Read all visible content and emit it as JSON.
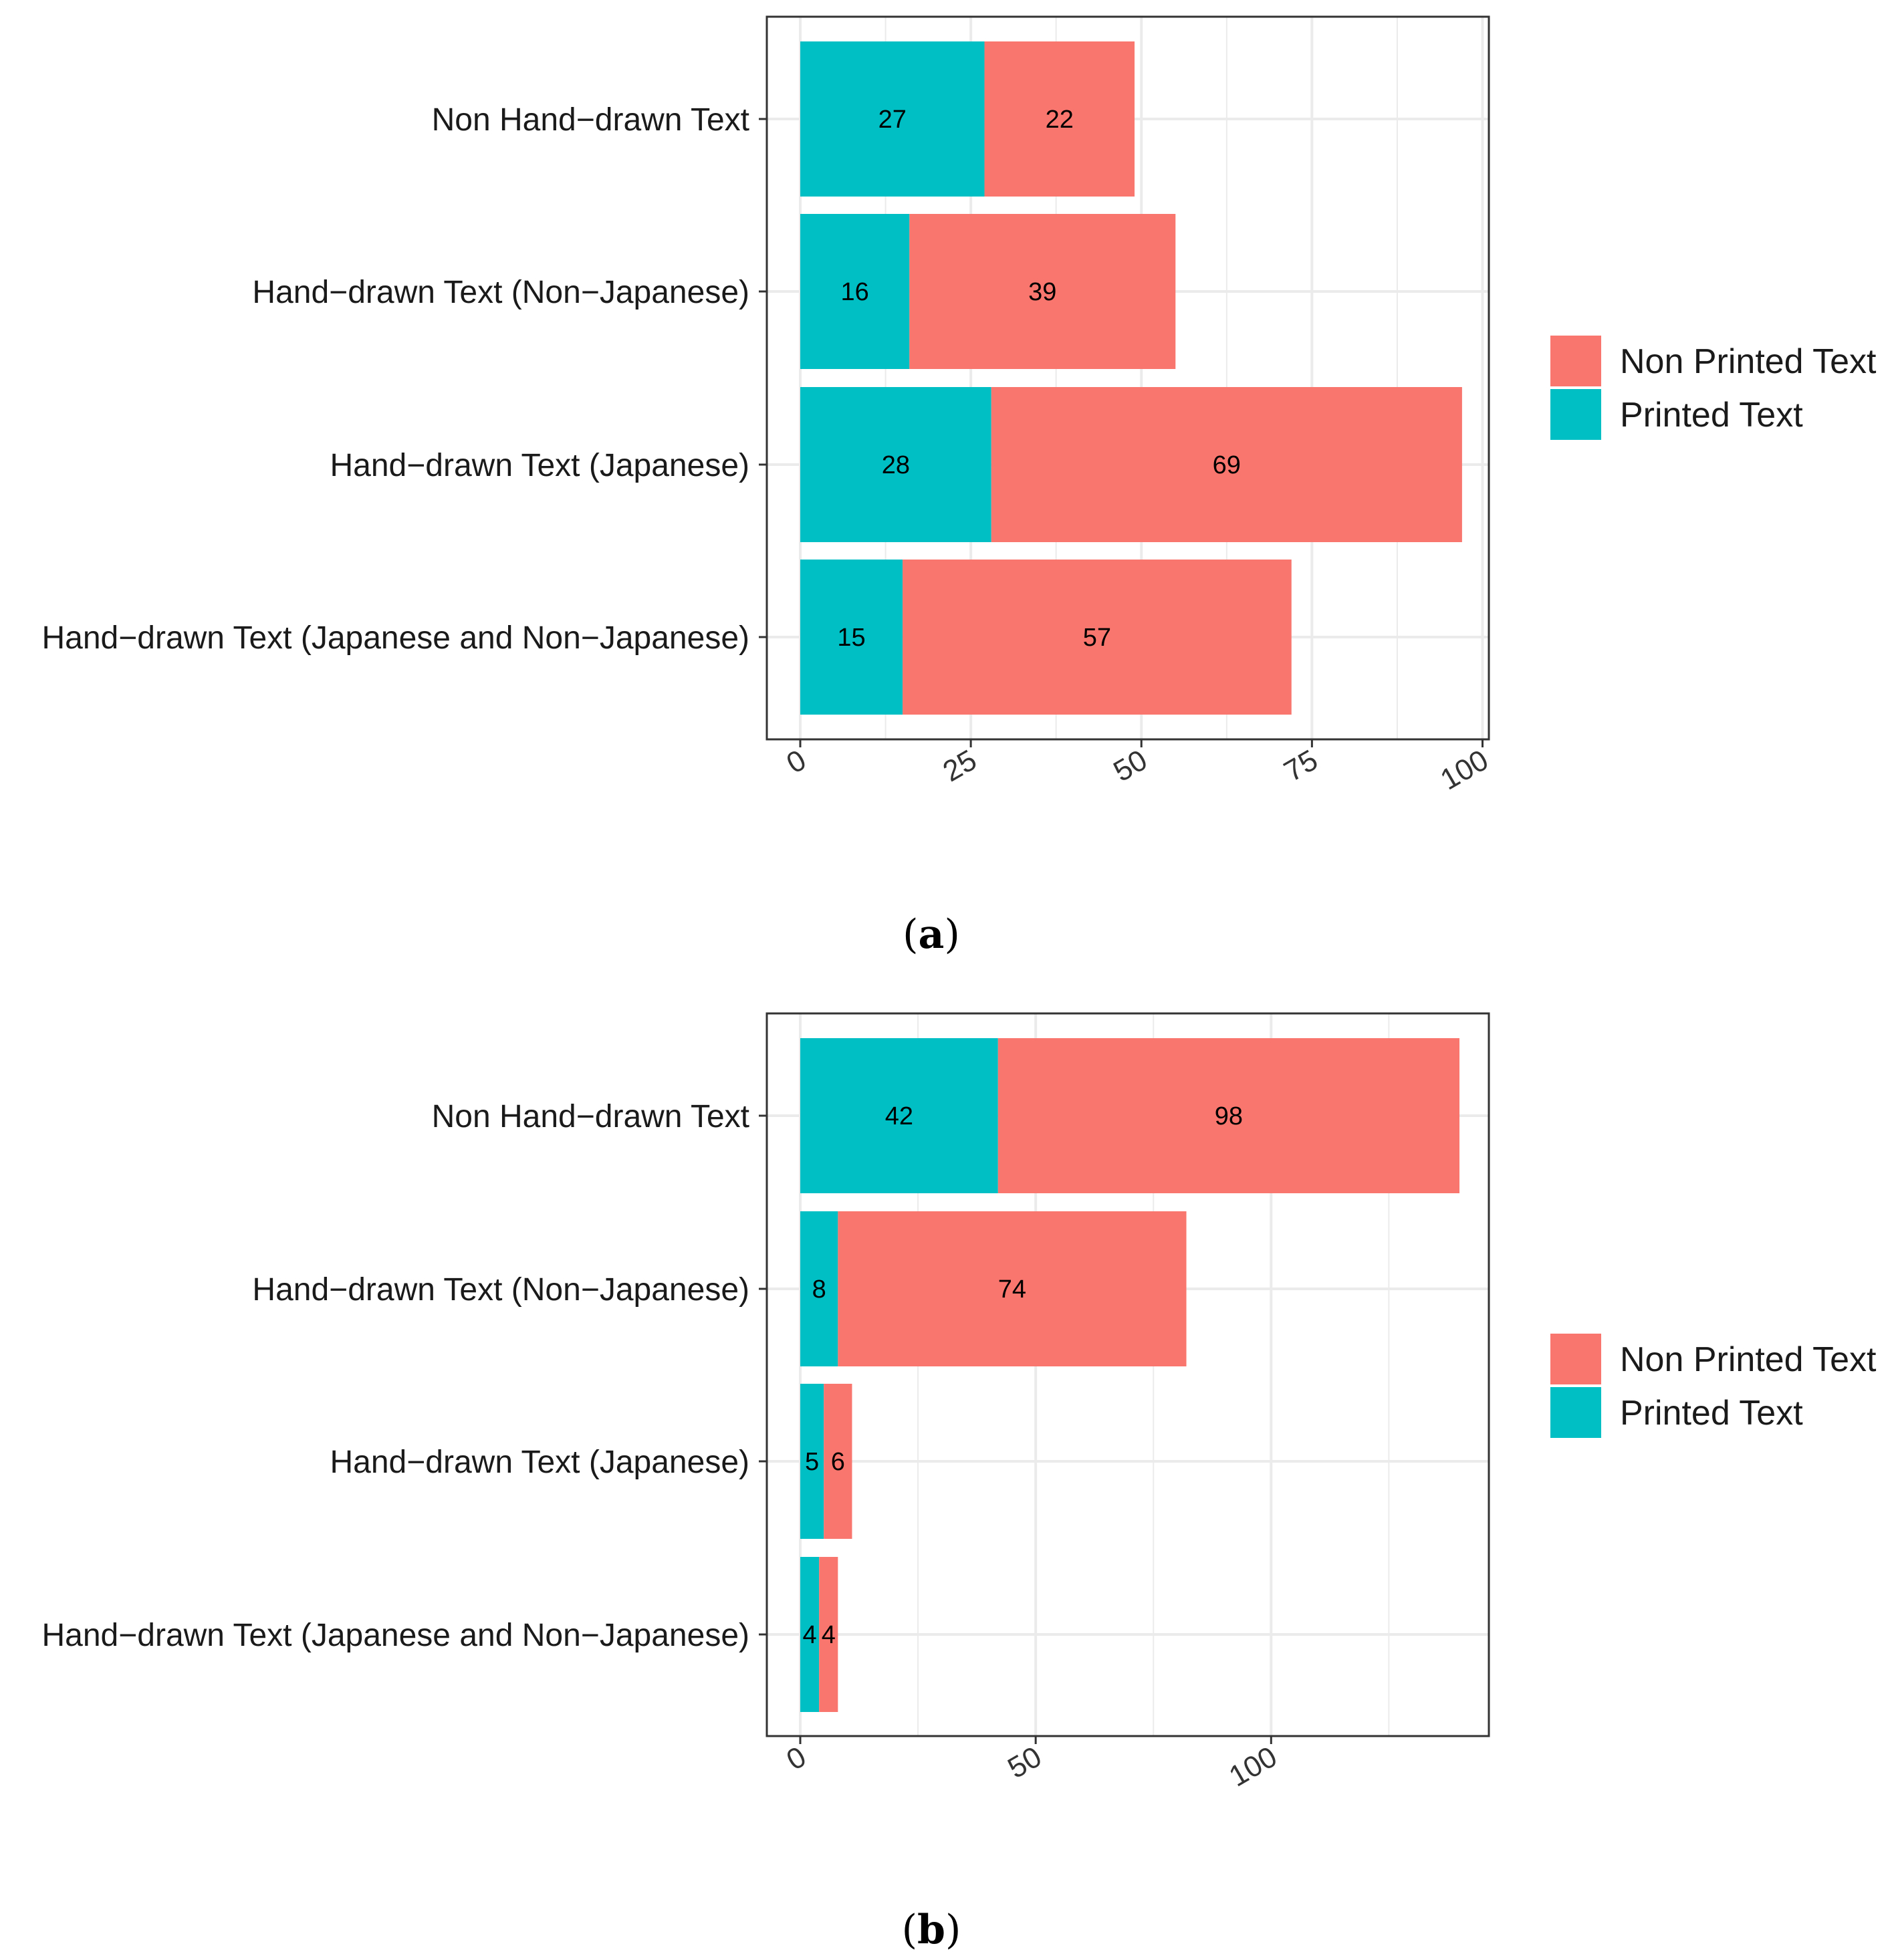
{
  "colors": {
    "printed": "#00BFC4",
    "non_printed": "#F8766D",
    "grid": "#EBEBEB",
    "panel_border": "#333333"
  },
  "legend": {
    "items": [
      {
        "key": "non_printed",
        "label": "Non Printed Text"
      },
      {
        "key": "printed",
        "label": "Printed Text"
      }
    ]
  },
  "chart_data": [
    {
      "type": "bar",
      "orientation": "horizontal",
      "stacked": true,
      "caption": "(a)",
      "categories": [
        "Non Hand−drawn Text",
        "Hand−drawn Text (Non−Japanese)",
        "Hand−drawn Text (Japanese)",
        "Hand−drawn Text (Japanese and Non−Japanese)"
      ],
      "series": [
        {
          "name": "Printed Text",
          "key": "printed",
          "values": [
            27,
            16,
            28,
            15
          ]
        },
        {
          "name": "Non Printed Text",
          "key": "non_printed",
          "values": [
            22,
            39,
            69,
            57
          ]
        }
      ],
      "xlim": [
        0,
        100
      ],
      "x_ticks": [
        0,
        25,
        50,
        75,
        100
      ],
      "grid": true,
      "legend_position": "right"
    },
    {
      "type": "bar",
      "orientation": "horizontal",
      "stacked": true,
      "caption": "(b)",
      "categories": [
        "Non Hand−drawn Text",
        "Hand−drawn Text (Non−Japanese)",
        "Hand−drawn Text (Japanese)",
        "Hand−drawn Text (Japanese and Non−Japanese)"
      ],
      "series": [
        {
          "name": "Printed Text",
          "key": "printed",
          "values": [
            42,
            8,
            5,
            4
          ]
        },
        {
          "name": "Non Printed Text",
          "key": "non_printed",
          "values": [
            98,
            74,
            6,
            4
          ]
        }
      ],
      "xlim": [
        0,
        140
      ],
      "x_ticks": [
        0,
        50,
        100
      ],
      "grid": true,
      "legend_position": "right"
    }
  ]
}
